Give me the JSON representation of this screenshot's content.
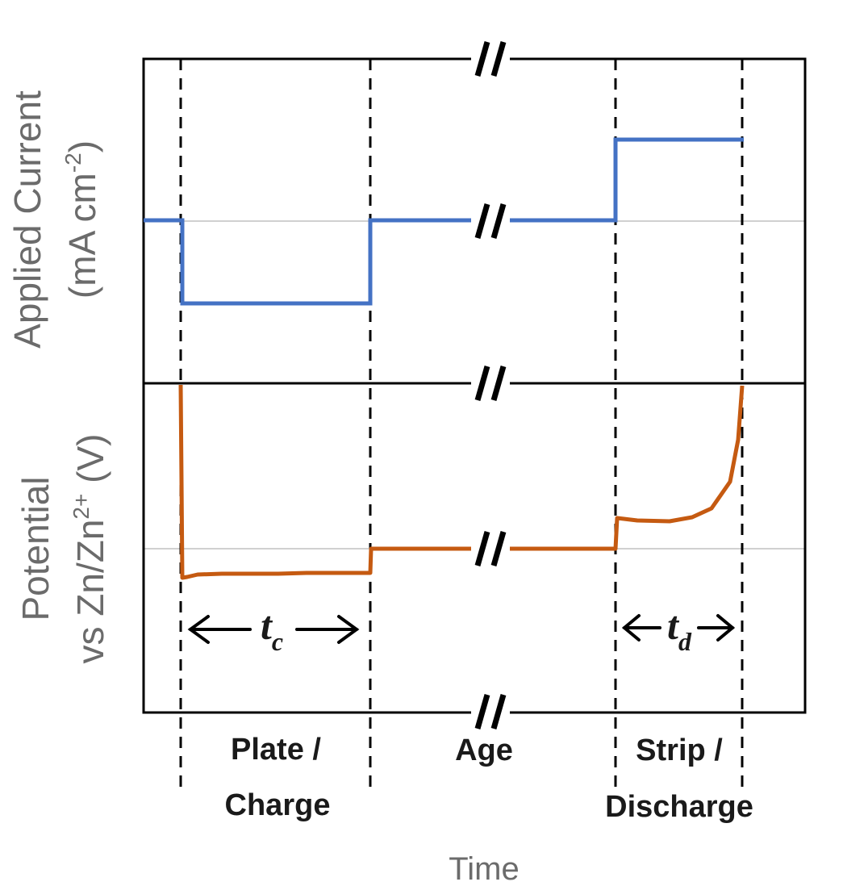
{
  "labels": {
    "top_y_line1": "Applied Current",
    "top_y_line2_pre": "(mA cm",
    "top_y_line2_sup": "-2",
    "top_y_line2_post": ")",
    "bottom_y_line1": "Potential",
    "bottom_y_line2_pre": "vs Zn/Zn",
    "bottom_y_line2_sup": "2+",
    "bottom_y_line2_post": " (V)",
    "x_axis": "Time",
    "tc_main": "t",
    "tc_sub": "c",
    "td_main": "t",
    "td_sub": "d",
    "break_mark": "//"
  },
  "phases": [
    {
      "line1": "Plate /",
      "line2": "Charge"
    },
    {
      "line1": "Age",
      "line2": ""
    },
    {
      "line1": "Strip /",
      "line2": "Discharge"
    }
  ],
  "colors": {
    "current": "#4472c4",
    "potential": "#c55a11",
    "frame": "#000000",
    "baseline": "#d0d0d0"
  }
}
